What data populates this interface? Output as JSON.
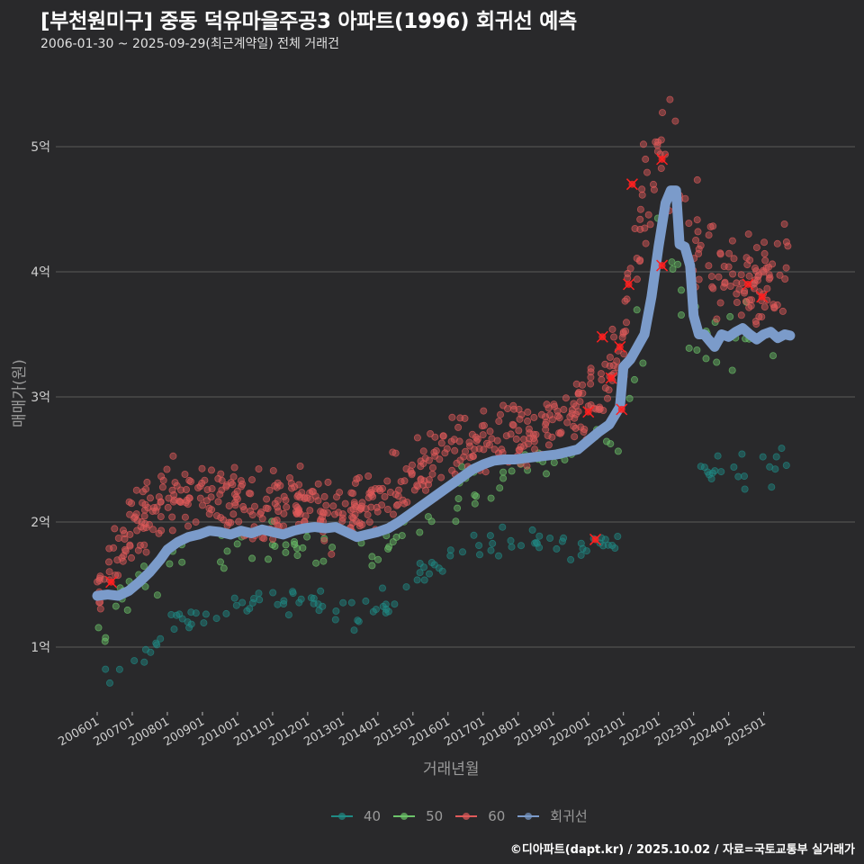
{
  "title": "[부천원미구] 중동 덕유마을주공3 아파트(1996) 회귀선 예측",
  "subtitle": "2006-01-30 ~ 2025-09-29(최근계약일) 전체 거래건",
  "footer": "©디아파트(dapt.kr) / 2025.10.02 / 자료=국토교통부 실거래가",
  "colors": {
    "background": "#29292b",
    "s40": "#1f8a84",
    "s50": "#6cc46a",
    "s60": "#e05a5a",
    "regression": "#7b9bca",
    "grid": "#5a5a5a",
    "highlight": "#ff2020"
  },
  "chart_data": {
    "type": "scatter",
    "title": "[부천원미구] 중동 덕유마을주공3 아파트(1996) 회귀선 예측",
    "xlabel": "거래년월",
    "ylabel": "매매가(원)",
    "ylim": [
      0.55,
      5.6
    ],
    "xlim": [
      2005.6,
      2026.0
    ],
    "yticks": [
      {
        "v": 1,
        "label": "1억"
      },
      {
        "v": 2,
        "label": "2억"
      },
      {
        "v": 3,
        "label": "3억"
      },
      {
        "v": 4,
        "label": "4억"
      },
      {
        "v": 5,
        "label": "5억"
      }
    ],
    "xticks": [
      {
        "v": 2006,
        "label": "200601"
      },
      {
        "v": 2007,
        "label": "200701"
      },
      {
        "v": 2008,
        "label": "200801"
      },
      {
        "v": 2009,
        "label": "200901"
      },
      {
        "v": 2010,
        "label": "201001"
      },
      {
        "v": 2011,
        "label": "201101"
      },
      {
        "v": 2012,
        "label": "201201"
      },
      {
        "v": 2013,
        "label": "201301"
      },
      {
        "v": 2014,
        "label": "201401"
      },
      {
        "v": 2015,
        "label": "201501"
      },
      {
        "v": 2016,
        "label": "201601"
      },
      {
        "v": 2017,
        "label": "201701"
      },
      {
        "v": 2018,
        "label": "201801"
      },
      {
        "v": 2019,
        "label": "201901"
      },
      {
        "v": 2020,
        "label": "202001"
      },
      {
        "v": 2021,
        "label": "202101"
      },
      {
        "v": 2022,
        "label": "202201"
      },
      {
        "v": 2023,
        "label": "202301"
      },
      {
        "v": 2024,
        "label": "202401"
      },
      {
        "v": 2025,
        "label": "202501"
      }
    ],
    "grid": true,
    "legend_position": "bottom",
    "legend": [
      {
        "key": "s40",
        "label": "40"
      },
      {
        "key": "s50",
        "label": "50"
      },
      {
        "key": "s60",
        "label": "60"
      },
      {
        "key": "regression",
        "label": "회귀선"
      }
    ],
    "series": [
      {
        "name": "40",
        "key": "s40",
        "trend": [
          [
            2006.0,
            0.74
          ],
          [
            2006.5,
            0.8
          ],
          [
            2007.0,
            0.9
          ],
          [
            2007.5,
            1.0
          ],
          [
            2008.0,
            1.12
          ],
          [
            2008.5,
            1.22
          ],
          [
            2009.0,
            1.28
          ],
          [
            2009.5,
            1.3
          ],
          [
            2010.0,
            1.33
          ],
          [
            2010.5,
            1.35
          ],
          [
            2011.0,
            1.38
          ],
          [
            2011.5,
            1.4
          ],
          [
            2012.0,
            1.37
          ],
          [
            2012.5,
            1.33
          ],
          [
            2013.0,
            1.3
          ],
          [
            2013.5,
            1.28
          ],
          [
            2014.0,
            1.32
          ],
          [
            2014.5,
            1.36
          ],
          [
            2015.0,
            1.48
          ],
          [
            2015.5,
            1.6
          ],
          [
            2016.0,
            1.68
          ],
          [
            2016.5,
            1.75
          ],
          [
            2017.0,
            1.8
          ],
          [
            2017.5,
            1.82
          ],
          [
            2018.0,
            1.84
          ],
          [
            2018.5,
            1.84
          ],
          [
            2019.0,
            1.8
          ],
          [
            2019.5,
            1.77
          ],
          [
            2020.0,
            1.8
          ],
          [
            2020.5,
            1.82
          ],
          [
            2021.0,
            1.86
          ],
          [
            2023.0,
            2.35
          ],
          [
            2024.0,
            2.35
          ],
          [
            2025.0,
            2.45
          ],
          [
            2025.7,
            2.5
          ]
        ],
        "spread": 0.06,
        "count": 150
      },
      {
        "name": "50",
        "key": "s50",
        "trend": [
          [
            2006.0,
            1.12
          ],
          [
            2006.5,
            1.3
          ],
          [
            2007.0,
            1.5
          ],
          [
            2007.5,
            1.62
          ],
          [
            2008.0,
            1.75
          ],
          [
            2008.5,
            1.8
          ],
          [
            2009.0,
            1.78
          ],
          [
            2009.5,
            1.8
          ],
          [
            2010.0,
            1.78
          ],
          [
            2010.5,
            1.8
          ],
          [
            2011.0,
            1.82
          ],
          [
            2011.5,
            1.83
          ],
          [
            2012.0,
            1.78
          ],
          [
            2012.5,
            1.75
          ],
          [
            2013.0,
            1.76
          ],
          [
            2013.5,
            1.79
          ],
          [
            2014.0,
            1.82
          ],
          [
            2014.5,
            1.87
          ],
          [
            2015.0,
            1.96
          ],
          [
            2015.5,
            2.05
          ],
          [
            2016.0,
            2.15
          ],
          [
            2016.5,
            2.28
          ],
          [
            2017.0,
            2.33
          ],
          [
            2017.5,
            2.36
          ],
          [
            2018.0,
            2.4
          ],
          [
            2018.5,
            2.45
          ],
          [
            2019.0,
            2.5
          ],
          [
            2019.5,
            2.54
          ],
          [
            2020.0,
            2.58
          ],
          [
            2020.5,
            2.6
          ],
          [
            2021.0,
            2.62
          ],
          [
            2021.5,
            3.5
          ],
          [
            2022.0,
            4.4
          ],
          [
            2023.0,
            3.6
          ],
          [
            2024.0,
            3.45
          ],
          [
            2025.0,
            3.45
          ],
          [
            2025.7,
            3.4
          ]
        ],
        "spread": 0.09,
        "count": 120
      },
      {
        "name": "60",
        "key": "s60",
        "trend": [
          [
            2006.0,
            1.45
          ],
          [
            2006.5,
            1.65
          ],
          [
            2007.0,
            1.95
          ],
          [
            2007.5,
            2.05
          ],
          [
            2008.0,
            2.15
          ],
          [
            2008.5,
            2.15
          ],
          [
            2009.0,
            2.2
          ],
          [
            2009.5,
            2.2
          ],
          [
            2010.0,
            2.15
          ],
          [
            2010.5,
            2.1
          ],
          [
            2011.0,
            2.12
          ],
          [
            2011.5,
            2.15
          ],
          [
            2012.0,
            2.15
          ],
          [
            2012.5,
            2.1
          ],
          [
            2013.0,
            2.05
          ],
          [
            2013.5,
            2.08
          ],
          [
            2014.0,
            2.15
          ],
          [
            2014.5,
            2.25
          ],
          [
            2015.0,
            2.35
          ],
          [
            2015.5,
            2.48
          ],
          [
            2016.0,
            2.55
          ],
          [
            2016.5,
            2.6
          ],
          [
            2017.0,
            2.65
          ],
          [
            2017.5,
            2.66
          ],
          [
            2018.0,
            2.66
          ],
          [
            2018.5,
            2.7
          ],
          [
            2019.0,
            2.78
          ],
          [
            2019.5,
            2.85
          ],
          [
            2020.0,
            2.95
          ],
          [
            2020.5,
            3.1
          ],
          [
            2021.0,
            3.5
          ],
          [
            2021.5,
            4.4
          ],
          [
            2022.0,
            4.9
          ],
          [
            2022.5,
            4.9
          ],
          [
            2023.0,
            4.3
          ],
          [
            2023.5,
            4.0
          ],
          [
            2024.0,
            3.9
          ],
          [
            2024.5,
            3.95
          ],
          [
            2025.0,
            3.95
          ],
          [
            2025.7,
            4.0
          ]
        ],
        "spread": 0.13,
        "count": 700
      },
      {
        "name": "회귀선",
        "key": "regression",
        "x": [
          2006.0,
          2006.3,
          2006.6,
          2006.9,
          2007.2,
          2007.5,
          2007.8,
          2008.0,
          2008.3,
          2008.6,
          2008.9,
          2009.2,
          2009.5,
          2009.8,
          2010.1,
          2010.4,
          2010.7,
          2011.0,
          2011.3,
          2011.6,
          2011.9,
          2012.2,
          2012.5,
          2012.8,
          2013.1,
          2013.4,
          2013.7,
          2014.0,
          2014.3,
          2014.6,
          2014.9,
          2015.2,
          2015.5,
          2015.8,
          2016.1,
          2016.4,
          2016.7,
          2017.0,
          2017.3,
          2017.6,
          2017.9,
          2018.2,
          2018.5,
          2018.8,
          2019.1,
          2019.4,
          2019.7,
          2020.0,
          2020.3,
          2020.6,
          2020.9,
          2021.0,
          2021.2,
          2021.4,
          2021.6,
          2021.8,
          2022.0,
          2022.2,
          2022.35,
          2022.5,
          2022.6,
          2022.75,
          2022.9,
          2023.0,
          2023.15,
          2023.3,
          2023.45,
          2023.6,
          2023.8,
          2024.0,
          2024.2,
          2024.4,
          2024.6,
          2024.8,
          2025.0,
          2025.2,
          2025.4,
          2025.6,
          2025.75
        ],
        "values": [
          1.41,
          1.42,
          1.41,
          1.45,
          1.52,
          1.6,
          1.7,
          1.78,
          1.84,
          1.88,
          1.9,
          1.93,
          1.92,
          1.9,
          1.93,
          1.91,
          1.94,
          1.92,
          1.9,
          1.93,
          1.95,
          1.96,
          1.95,
          1.96,
          1.92,
          1.88,
          1.9,
          1.92,
          1.95,
          2.0,
          2.06,
          2.12,
          2.18,
          2.24,
          2.3,
          2.36,
          2.42,
          2.46,
          2.49,
          2.5,
          2.5,
          2.51,
          2.52,
          2.53,
          2.54,
          2.56,
          2.58,
          2.65,
          2.72,
          2.78,
          2.92,
          3.24,
          3.3,
          3.4,
          3.5,
          3.8,
          4.2,
          4.55,
          4.65,
          4.65,
          4.22,
          4.2,
          4.05,
          3.65,
          3.5,
          3.5,
          3.45,
          3.4,
          3.5,
          3.48,
          3.52,
          3.55,
          3.5,
          3.46,
          3.5,
          3.52,
          3.47,
          3.5,
          3.49
        ]
      },
      {
        "name": "highlight",
        "key": "highlight",
        "points": [
          [
            2006.4,
            1.52
          ],
          [
            2020.0,
            2.88
          ],
          [
            2020.2,
            1.86
          ],
          [
            2020.4,
            3.48
          ],
          [
            2020.9,
            3.4
          ],
          [
            2020.95,
            2.9
          ],
          [
            2021.15,
            3.9
          ],
          [
            2021.25,
            4.7
          ],
          [
            2022.1,
            4.9
          ],
          [
            2024.55,
            3.9
          ],
          [
            2024.95,
            3.8
          ],
          [
            2022.1,
            4.05
          ],
          [
            2020.65,
            3.15
          ]
        ]
      }
    ]
  }
}
